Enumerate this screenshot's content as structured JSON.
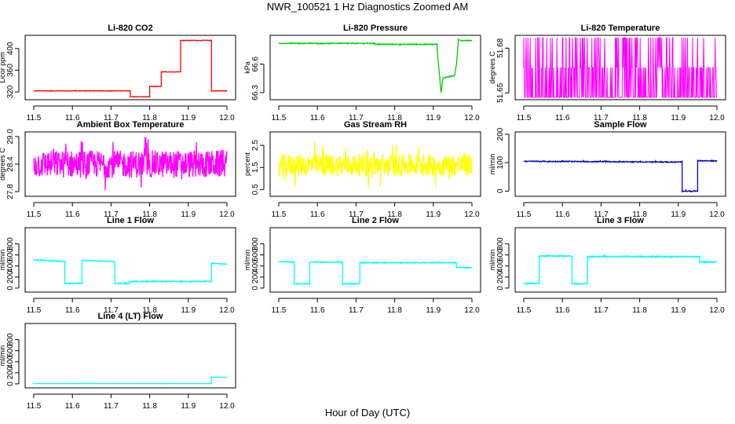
{
  "figure": {
    "title": "NWR_100521  1 Hz Diagnostics Zoomed AM",
    "xlabel": "Hour of Day (UTC)"
  },
  "chart_data": [
    {
      "type": "line",
      "title": "Li-820 CO2",
      "ylabel": "Licor ppm",
      "color": "#ff0000",
      "xlim": [
        11.5,
        12.0
      ],
      "ylim": [
        310,
        420
      ],
      "xticks": [
        "11.5",
        "11.6",
        "11.7",
        "11.8",
        "11.9",
        "12.0"
      ],
      "yticks": [
        {
          "v": 320,
          "l": "320"
        },
        {
          "v": 360,
          "l": "360"
        },
        {
          "v": 400,
          "l": "400"
        }
      ],
      "pad": 0.4,
      "x": [
        11.5,
        11.75,
        11.75,
        11.76,
        11.76,
        11.8,
        11.8,
        11.83,
        11.83,
        11.87,
        11.87,
        11.88,
        11.88,
        11.96,
        11.96,
        12.0
      ],
      "y": [
        322,
        322,
        311,
        311,
        311,
        311,
        330,
        330,
        357,
        357,
        357,
        357,
        415,
        415,
        322,
        322
      ]
    },
    {
      "type": "line",
      "title": "Li-820 Pressure",
      "ylabel": "kPa",
      "color": "#00cc00",
      "xlim": [
        11.5,
        12.0
      ],
      "ylim": [
        66.25,
        66.88
      ],
      "xticks": [
        "11.5",
        "11.6",
        "11.7",
        "11.8",
        "11.9",
        "12.0"
      ],
      "yticks": [
        {
          "v": 66.3,
          "l": "66.3"
        },
        {
          "v": 66.6,
          "l": "66.6"
        }
      ],
      "pad": 0.004,
      "x": [
        11.5,
        11.75,
        11.75,
        11.91,
        11.91,
        11.92,
        11.925,
        11.93,
        11.955,
        11.96,
        11.965,
        11.97,
        12.0
      ],
      "y": [
        66.82,
        66.82,
        66.81,
        66.81,
        66.75,
        66.3,
        66.45,
        66.46,
        66.48,
        66.6,
        66.86,
        66.85,
        66.85
      ]
    },
    {
      "type": "spikes",
      "title": "Li-820 Temperature",
      "ylabel": "degrees C",
      "color": "#ff00ff",
      "xlim": [
        11.5,
        12.0
      ],
      "ylim": [
        51.647,
        51.687
      ],
      "xticks": [
        "11.5",
        "11.6",
        "11.7",
        "11.8",
        "11.9",
        "12.0"
      ],
      "yticks": [
        {
          "v": 51.65,
          "l": "51.65"
        },
        {
          "v": 51.68,
          "l": "51.68"
        }
      ],
      "levels": [
        51.647,
        51.667,
        51.687
      ]
    },
    {
      "type": "line",
      "title": "Ambient Box Temperature",
      "ylabel": "degrees C",
      "color": "#ff00ff",
      "xlim": [
        11.5,
        12.0
      ],
      "ylim": [
        27.75,
        29.05
      ],
      "xticks": [
        "11.5",
        "11.6",
        "11.7",
        "11.8",
        "11.9",
        "12.0"
      ],
      "yticks": [
        {
          "v": 27.8,
          "l": "27.8"
        },
        {
          "v": 28.4,
          "l": "28.4"
        },
        {
          "v": 29.0,
          "l": "29.0"
        }
      ],
      "pad": 0.3,
      "x": [
        11.5,
        12.0
      ],
      "y": [
        28.4,
        28.4
      ]
    },
    {
      "type": "line",
      "title": "Gas Stream RH",
      "ylabel": "percent",
      "color": "#ffff00",
      "xlim": [
        11.5,
        12.0
      ],
      "ylim": [
        0.3,
        3.0
      ],
      "xticks": [
        "11.5",
        "11.6",
        "11.7",
        "11.8",
        "11.9",
        "12.0"
      ],
      "yticks": [
        {
          "v": 0.5,
          "l": "0.5"
        },
        {
          "v": 1.5,
          "l": "1.5"
        },
        {
          "v": 2.5,
          "l": "2.5"
        }
      ],
      "pad": 0.5,
      "x": [
        11.5,
        12.0
      ],
      "y": [
        1.6,
        1.6
      ]
    },
    {
      "type": "line",
      "title": "Sample Flow",
      "ylabel": "ml/min",
      "color": "#0000cc",
      "xlim": [
        11.5,
        12.0
      ],
      "ylim": [
        -10,
        200
      ],
      "xticks": [
        "11.5",
        "11.6",
        "11.7",
        "11.8",
        "11.9",
        "12.0"
      ],
      "yticks": [
        {
          "v": 0,
          "l": "0"
        },
        {
          "v": 100,
          "l": "100"
        },
        {
          "v": 200,
          "l": "200"
        }
      ],
      "pad": 1.5,
      "x": [
        11.5,
        11.91,
        11.91,
        11.95,
        11.95,
        12.0
      ],
      "y": [
        105,
        102,
        0,
        0,
        107,
        106
      ]
    },
    {
      "type": "line",
      "title": "Line 1 Flow",
      "ylabel": "ml/min",
      "color": "#00ffff",
      "xlim": [
        11.5,
        12.0
      ],
      "ylim": [
        -30,
        1050
      ],
      "xticks": [
        "11.5",
        "11.6",
        "11.7",
        "11.8",
        "11.9",
        "12.0"
      ],
      "yticks": [
        {
          "v": 0,
          "l": "0"
        },
        {
          "v": 200,
          "l": "200"
        },
        {
          "v": 400,
          "l": "400"
        },
        {
          "v": 600,
          "l": "600"
        },
        {
          "v": 800,
          "l": "800"
        }
      ],
      "pad": 8,
      "x": [
        11.5,
        11.58,
        11.58,
        11.625,
        11.625,
        11.71,
        11.71,
        11.745,
        11.75,
        11.96,
        11.96,
        12.0
      ],
      "y": [
        510,
        480,
        85,
        85,
        500,
        480,
        85,
        85,
        120,
        120,
        450,
        430
      ]
    },
    {
      "type": "line",
      "title": "Line 2 Flow",
      "ylabel": "ml/min",
      "color": "#00ffff",
      "xlim": [
        11.5,
        12.0
      ],
      "ylim": [
        -30,
        1050
      ],
      "xticks": [
        "11.5",
        "11.6",
        "11.7",
        "11.8",
        "11.9",
        "12.0"
      ],
      "yticks": [
        {
          "v": 0,
          "l": "0"
        },
        {
          "v": 200,
          "l": "200"
        },
        {
          "v": 400,
          "l": "400"
        },
        {
          "v": 600,
          "l": "600"
        },
        {
          "v": 800,
          "l": "800"
        }
      ],
      "pad": 8,
      "x": [
        11.5,
        11.54,
        11.54,
        11.58,
        11.58,
        11.665,
        11.665,
        11.71,
        11.71,
        11.96,
        11.96,
        12.0
      ],
      "y": [
        480,
        470,
        80,
        80,
        470,
        470,
        80,
        80,
        460,
        460,
        370,
        370
      ]
    },
    {
      "type": "line",
      "title": "Line 3 Flow",
      "ylabel": "ml/min",
      "color": "#00ffff",
      "xlim": [
        11.5,
        12.0
      ],
      "ylim": [
        -30,
        1050
      ],
      "xticks": [
        "11.5",
        "11.6",
        "11.7",
        "11.8",
        "11.9",
        "12.0"
      ],
      "yticks": [
        {
          "v": 0,
          "l": "0"
        },
        {
          "v": 200,
          "l": "200"
        },
        {
          "v": 400,
          "l": "400"
        },
        {
          "v": 600,
          "l": "600"
        },
        {
          "v": 800,
          "l": "800"
        }
      ],
      "pad": 10,
      "x": [
        11.5,
        11.54,
        11.54,
        11.625,
        11.625,
        11.665,
        11.665,
        11.955,
        11.955,
        12.0
      ],
      "y": [
        80,
        80,
        580,
        580,
        80,
        80,
        570,
        570,
        470,
        470
      ]
    },
    {
      "type": "line",
      "title": "Line 4 (LT) Flow",
      "ylabel": "ml/min",
      "color": "#00ffff",
      "xlim": [
        11.5,
        12.0
      ],
      "ylim": [
        -30,
        1050
      ],
      "xticks": [
        "11.5",
        "11.6",
        "11.7",
        "11.8",
        "11.9",
        "12.0"
      ],
      "yticks": [
        {
          "v": 0,
          "l": "0"
        },
        {
          "v": 200,
          "l": "200"
        },
        {
          "v": 400,
          "l": "400"
        },
        {
          "v": 600,
          "l": "600"
        },
        {
          "v": 800,
          "l": "800"
        }
      ],
      "pad": 2,
      "x": [
        11.5,
        11.96,
        11.96,
        12.0
      ],
      "y": [
        5,
        5,
        120,
        120
      ]
    }
  ]
}
